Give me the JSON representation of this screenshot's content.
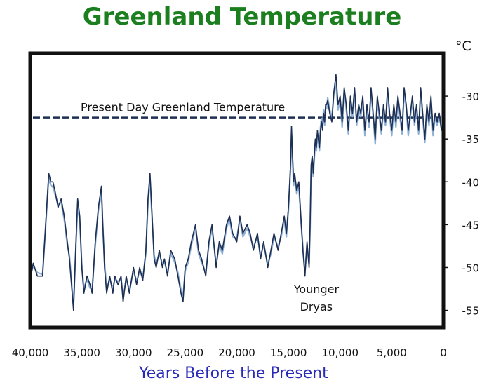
{
  "chart_data": {
    "type": "line",
    "title": "Greenland Temperature",
    "xlabel": "Years Before the Present",
    "ylabel": "",
    "y_unit": "°C",
    "xlim": [
      40000,
      0
    ],
    "ylim": [
      -57,
      -25
    ],
    "x_ticks": [
      "40,000",
      "35,000",
      "30,000",
      "25,000",
      "20,000",
      "15,000",
      "10,000",
      "5,000",
      "0"
    ],
    "y_ticks": [
      "-30",
      "-35",
      "-40",
      "-45",
      "-50",
      "-55"
    ],
    "grid": false,
    "colors": {
      "line": "#1d2f52",
      "highlight": "#8fb0d6",
      "frame": "#111111",
      "title": "#1c7f1f",
      "xlabel": "#2a2ab8"
    },
    "series": [
      {
        "x": [
          40000,
          39700,
          39300,
          38800,
          38200,
          38000,
          37800,
          37600,
          37300,
          37000,
          36700,
          36400,
          36200,
          36000,
          35800,
          35600,
          35400,
          35200,
          35000,
          34800,
          34500,
          34200,
          34000,
          33700,
          33400,
          33100,
          33000,
          32800,
          32600,
          32300,
          32000,
          31800,
          31500,
          31200,
          31000,
          30700,
          30400,
          30000,
          29700,
          29400,
          29100,
          28800,
          28600,
          28400,
          28200,
          28000,
          27800,
          27500,
          27200,
          27000,
          26700,
          26400,
          26000,
          25700,
          25400,
          25200,
          25000,
          24700,
          24400,
          24000,
          23700,
          23400,
          23000,
          22700,
          22400,
          22000,
          21700,
          21400,
          21000,
          20700,
          20400,
          20000,
          19700,
          19400,
          19000,
          18700,
          18400,
          18000,
          17700,
          17400,
          17000,
          16700,
          16400,
          16000,
          15700,
          15400,
          15200,
          15000,
          14800,
          14700,
          14600,
          14500,
          14400,
          14200,
          14000,
          13800,
          13600,
          13400,
          13200,
          13000,
          12900,
          12800,
          12700,
          12600,
          12500,
          12400,
          12300,
          12200,
          12100,
          12000,
          11900,
          11800,
          11700,
          11600,
          11500,
          11400,
          11300,
          11200,
          11000,
          10800,
          10600,
          10400,
          10200,
          10000,
          9800,
          9600,
          9400,
          9200,
          9000,
          8800,
          8600,
          8400,
          8200,
          8000,
          7800,
          7600,
          7400,
          7200,
          7000,
          6800,
          6600,
          6400,
          6200,
          6000,
          5800,
          5600,
          5400,
          5200,
          5000,
          4800,
          4600,
          4400,
          4200,
          4000,
          3800,
          3600,
          3400,
          3200,
          3000,
          2800,
          2600,
          2400,
          2200,
          2000,
          1800,
          1600,
          1400,
          1200,
          1000,
          800,
          600,
          400,
          200,
          0
        ],
        "values": [
          -51.5,
          -49.5,
          -51,
          -51,
          -39,
          -40,
          -40,
          -41,
          -43,
          -42,
          -44,
          -47,
          -49,
          -52,
          -55,
          -48,
          -42,
          -44,
          -50,
          -53,
          -51,
          -52,
          -53,
          -47,
          -43,
          -40.5,
          -44,
          -50,
          -53,
          -51,
          -53,
          -51,
          -52,
          -51,
          -54,
          -51,
          -53,
          -50,
          -52,
          -50,
          -51.5,
          -48,
          -42,
          -39,
          -44,
          -49,
          -50,
          -48,
          -50,
          -49,
          -51,
          -48,
          -49,
          -51,
          -53,
          -54,
          -50,
          -49,
          -47,
          -45,
          -48,
          -49,
          -51,
          -47,
          -45,
          -50,
          -47,
          -48,
          -45,
          -44,
          -46,
          -47,
          -44,
          -46,
          -45,
          -46,
          -48,
          -46,
          -49,
          -47,
          -50,
          -48,
          -46,
          -48,
          -46,
          -44,
          -46,
          -43,
          -38,
          -33.5,
          -37,
          -40,
          -39,
          -41,
          -40,
          -44,
          -48,
          -51,
          -47,
          -50,
          -45,
          -38,
          -37,
          -39,
          -37,
          -35,
          -36,
          -34,
          -35,
          -36,
          -34,
          -33,
          -34,
          -32,
          -33,
          -31,
          -31,
          -30.5,
          -32,
          -33,
          -29.5,
          -27.5,
          -31,
          -30,
          -33,
          -29,
          -31,
          -34,
          -30,
          -32,
          -29,
          -33,
          -31,
          -32,
          -30,
          -34,
          -31,
          -33,
          -29,
          -32,
          -35,
          -30,
          -32,
          -34,
          -31,
          -33,
          -29,
          -32,
          -34,
          -31,
          -33,
          -30,
          -32,
          -34,
          -29,
          -31,
          -34,
          -32,
          -30,
          -33,
          -31,
          -34,
          -29,
          -32,
          -35,
          -31,
          -33,
          -30,
          -34,
          -32,
          -33,
          -32,
          -34,
          -33
        ],
        "highlight_values": [
          -51,
          -49.8,
          -50.6,
          -50.8,
          -39.6,
          -40.4,
          -40.6,
          -41.4,
          -42.6,
          -42.4,
          -44.4,
          -47.4,
          -48.6,
          -51.6,
          -54.4,
          -48.4,
          -42.6,
          -44.6,
          -49.6,
          -52.4,
          -51.4,
          -52.4,
          -52.6,
          -47.4,
          -43.4,
          -41.2,
          -44.4,
          -49.4,
          -52.4,
          -51.4,
          -52.4,
          -51.4,
          -51.6,
          -51.4,
          -53.4,
          -51.4,
          -52.6,
          -50.4,
          -51.6,
          -50.4,
          -51.2,
          -48.4,
          -42.6,
          -39.6,
          -44.4,
          -48.6,
          -49.6,
          -48.4,
          -49.6,
          -49.4,
          -50.6,
          -48.4,
          -49.4,
          -50.6,
          -52.6,
          -53.4,
          -50.4,
          -49.4,
          -47.4,
          -45.4,
          -48.4,
          -49.4,
          -50.6,
          -47.4,
          -45.4,
          -49.6,
          -47.4,
          -48.4,
          -45.4,
          -44.4,
          -46.4,
          -46.6,
          -44.4,
          -46.4,
          -45.4,
          -46.4,
          -47.6,
          -46.4,
          -48.6,
          -47.4,
          -49.6,
          -48.4,
          -46.4,
          -47.6,
          -46.4,
          -44.4,
          -46.4,
          -43.4,
          -38.6,
          -34.4,
          -37.4,
          -40.4,
          -39.4,
          -41.4,
          -40.4,
          -44.4,
          -47.6,
          -50.4,
          -47.4,
          -49.6,
          -45.4,
          -38.6,
          -37.4,
          -39.4,
          -37.4,
          -35.4,
          -36.4,
          -34.4,
          -35.4,
          -36.4,
          -33.6,
          -32.6,
          -33.6,
          -31.6,
          -33.4,
          -31.4,
          -31.4,
          -30.2,
          -31.6,
          -32.6,
          -29.6,
          -28.6,
          -31.6,
          -30.4,
          -33.6,
          -29.4,
          -31.6,
          -34.4,
          -30.6,
          -32.4,
          -29.4,
          -33.4,
          -31.6,
          -32.4,
          -30.6,
          -34.6,
          -31.4,
          -33.6,
          -29.4,
          -32.4,
          -35.6,
          -30.4,
          -32.6,
          -34.4,
          -31.6,
          -33.4,
          -29.6,
          -32.4,
          -34.6,
          -31.4,
          -33.6,
          -30.4,
          -32.6,
          -34.4,
          -29.6,
          -31.4,
          -34.6,
          -32.4,
          -30.6,
          -33.4,
          -31.6,
          -34.4,
          -29.4,
          -32.6,
          -35.4,
          -31.6,
          -33.4,
          -30.4,
          -34.6,
          -32.4,
          -33.4,
          -32.6,
          -33.6,
          -33.4
        ]
      }
    ],
    "reference_line": {
      "label": "Present Day Greenland Temperature",
      "value": -32.5
    },
    "annotations": [
      {
        "text_lines": [
          "Younger",
          "Dryas"
        ],
        "x": 12300,
        "y": -53
      }
    ]
  }
}
